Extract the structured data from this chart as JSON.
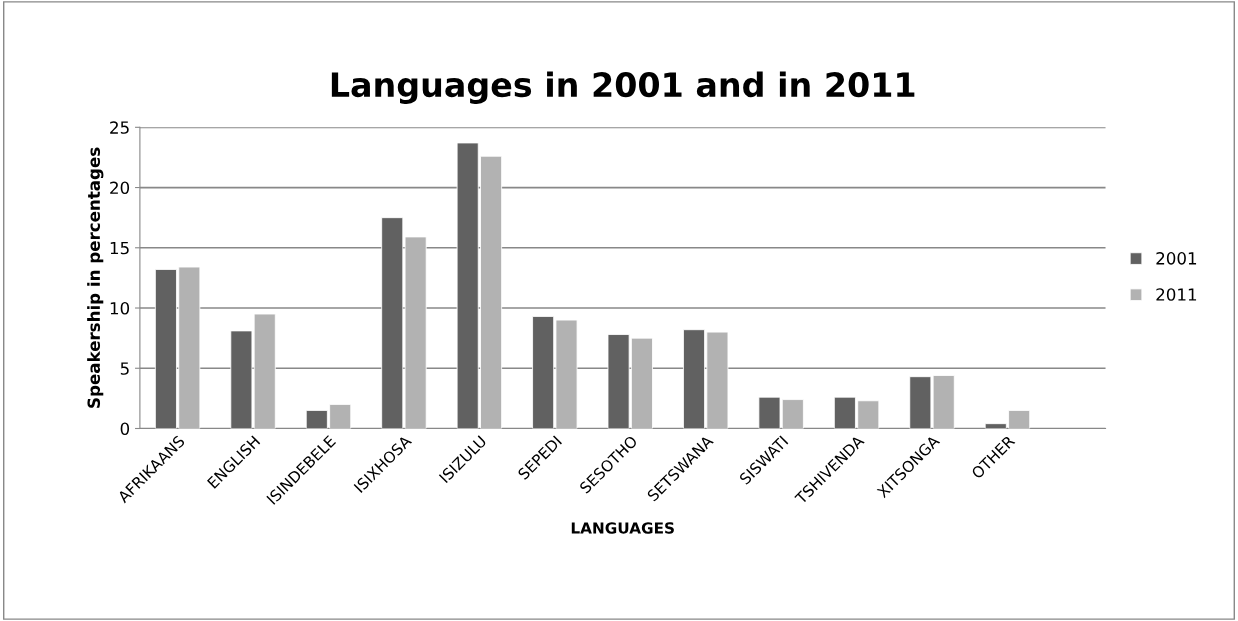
{
  "chart_data": {
    "type": "bar",
    "title": "Languages in 2001 and in 2011",
    "xlabel": "LANGUAGES",
    "ylabel": "Speakership in percentages",
    "categories": [
      "AFRIKAANS",
      "ENGLISH",
      "ISINDEBELE",
      "ISIXHOSA",
      "ISIZULU",
      "SEPEDI",
      "SESOTHO",
      "SETSWANA",
      "SISWATI",
      "TSHIVENDA",
      "XITSONGA",
      "OTHER"
    ],
    "series": [
      {
        "name": "2001",
        "color": "#616161",
        "values": [
          13.2,
          8.1,
          1.5,
          17.5,
          23.7,
          9.3,
          7.8,
          8.2,
          2.6,
          2.6,
          4.3,
          0.4
        ]
      },
      {
        "name": "2011",
        "color": "#b2b2b2",
        "values": [
          13.4,
          9.5,
          2.0,
          15.9,
          22.6,
          9.0,
          7.5,
          8.0,
          2.4,
          2.3,
          4.4,
          1.5
        ]
      }
    ],
    "ylim": [
      0,
      25
    ],
    "yticks": [
      0,
      5,
      10,
      15,
      20,
      25
    ],
    "grid": "y",
    "legend": "right"
  }
}
